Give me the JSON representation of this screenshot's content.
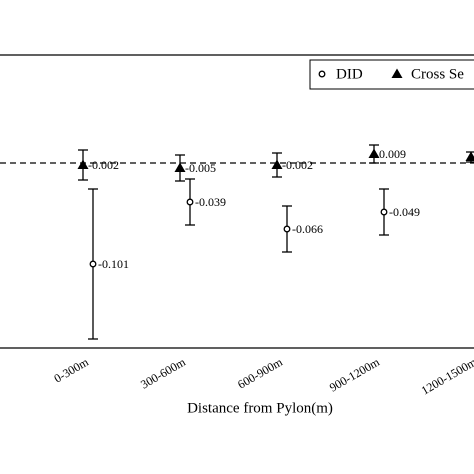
{
  "chart_data": {
    "type": "errorbar",
    "xlabel": "Distance from Pylon(m)",
    "categories": [
      "0-300m",
      "300-600m",
      "600-900m",
      "900-1200m",
      "1200-1500m"
    ],
    "series": [
      {
        "name": "DID",
        "marker": "circle",
        "color": "#000000",
        "values": [
          -0.101,
          -0.039,
          -0.066,
          -0.049,
          null
        ],
        "errors": [
          0.075,
          0.023,
          0.023,
          0.023,
          null
        ]
      },
      {
        "name": "Cross Se",
        "marker": "triangle",
        "color": "#000000",
        "values": [
          -0.002,
          -0.005,
          -0.002,
          0.009,
          0.006
        ],
        "errors": [
          0.015,
          0.013,
          0.012,
          0.009,
          0.005
        ]
      }
    ],
    "ylim": [
      -0.185,
      0.108
    ],
    "reference_line": 0
  }
}
